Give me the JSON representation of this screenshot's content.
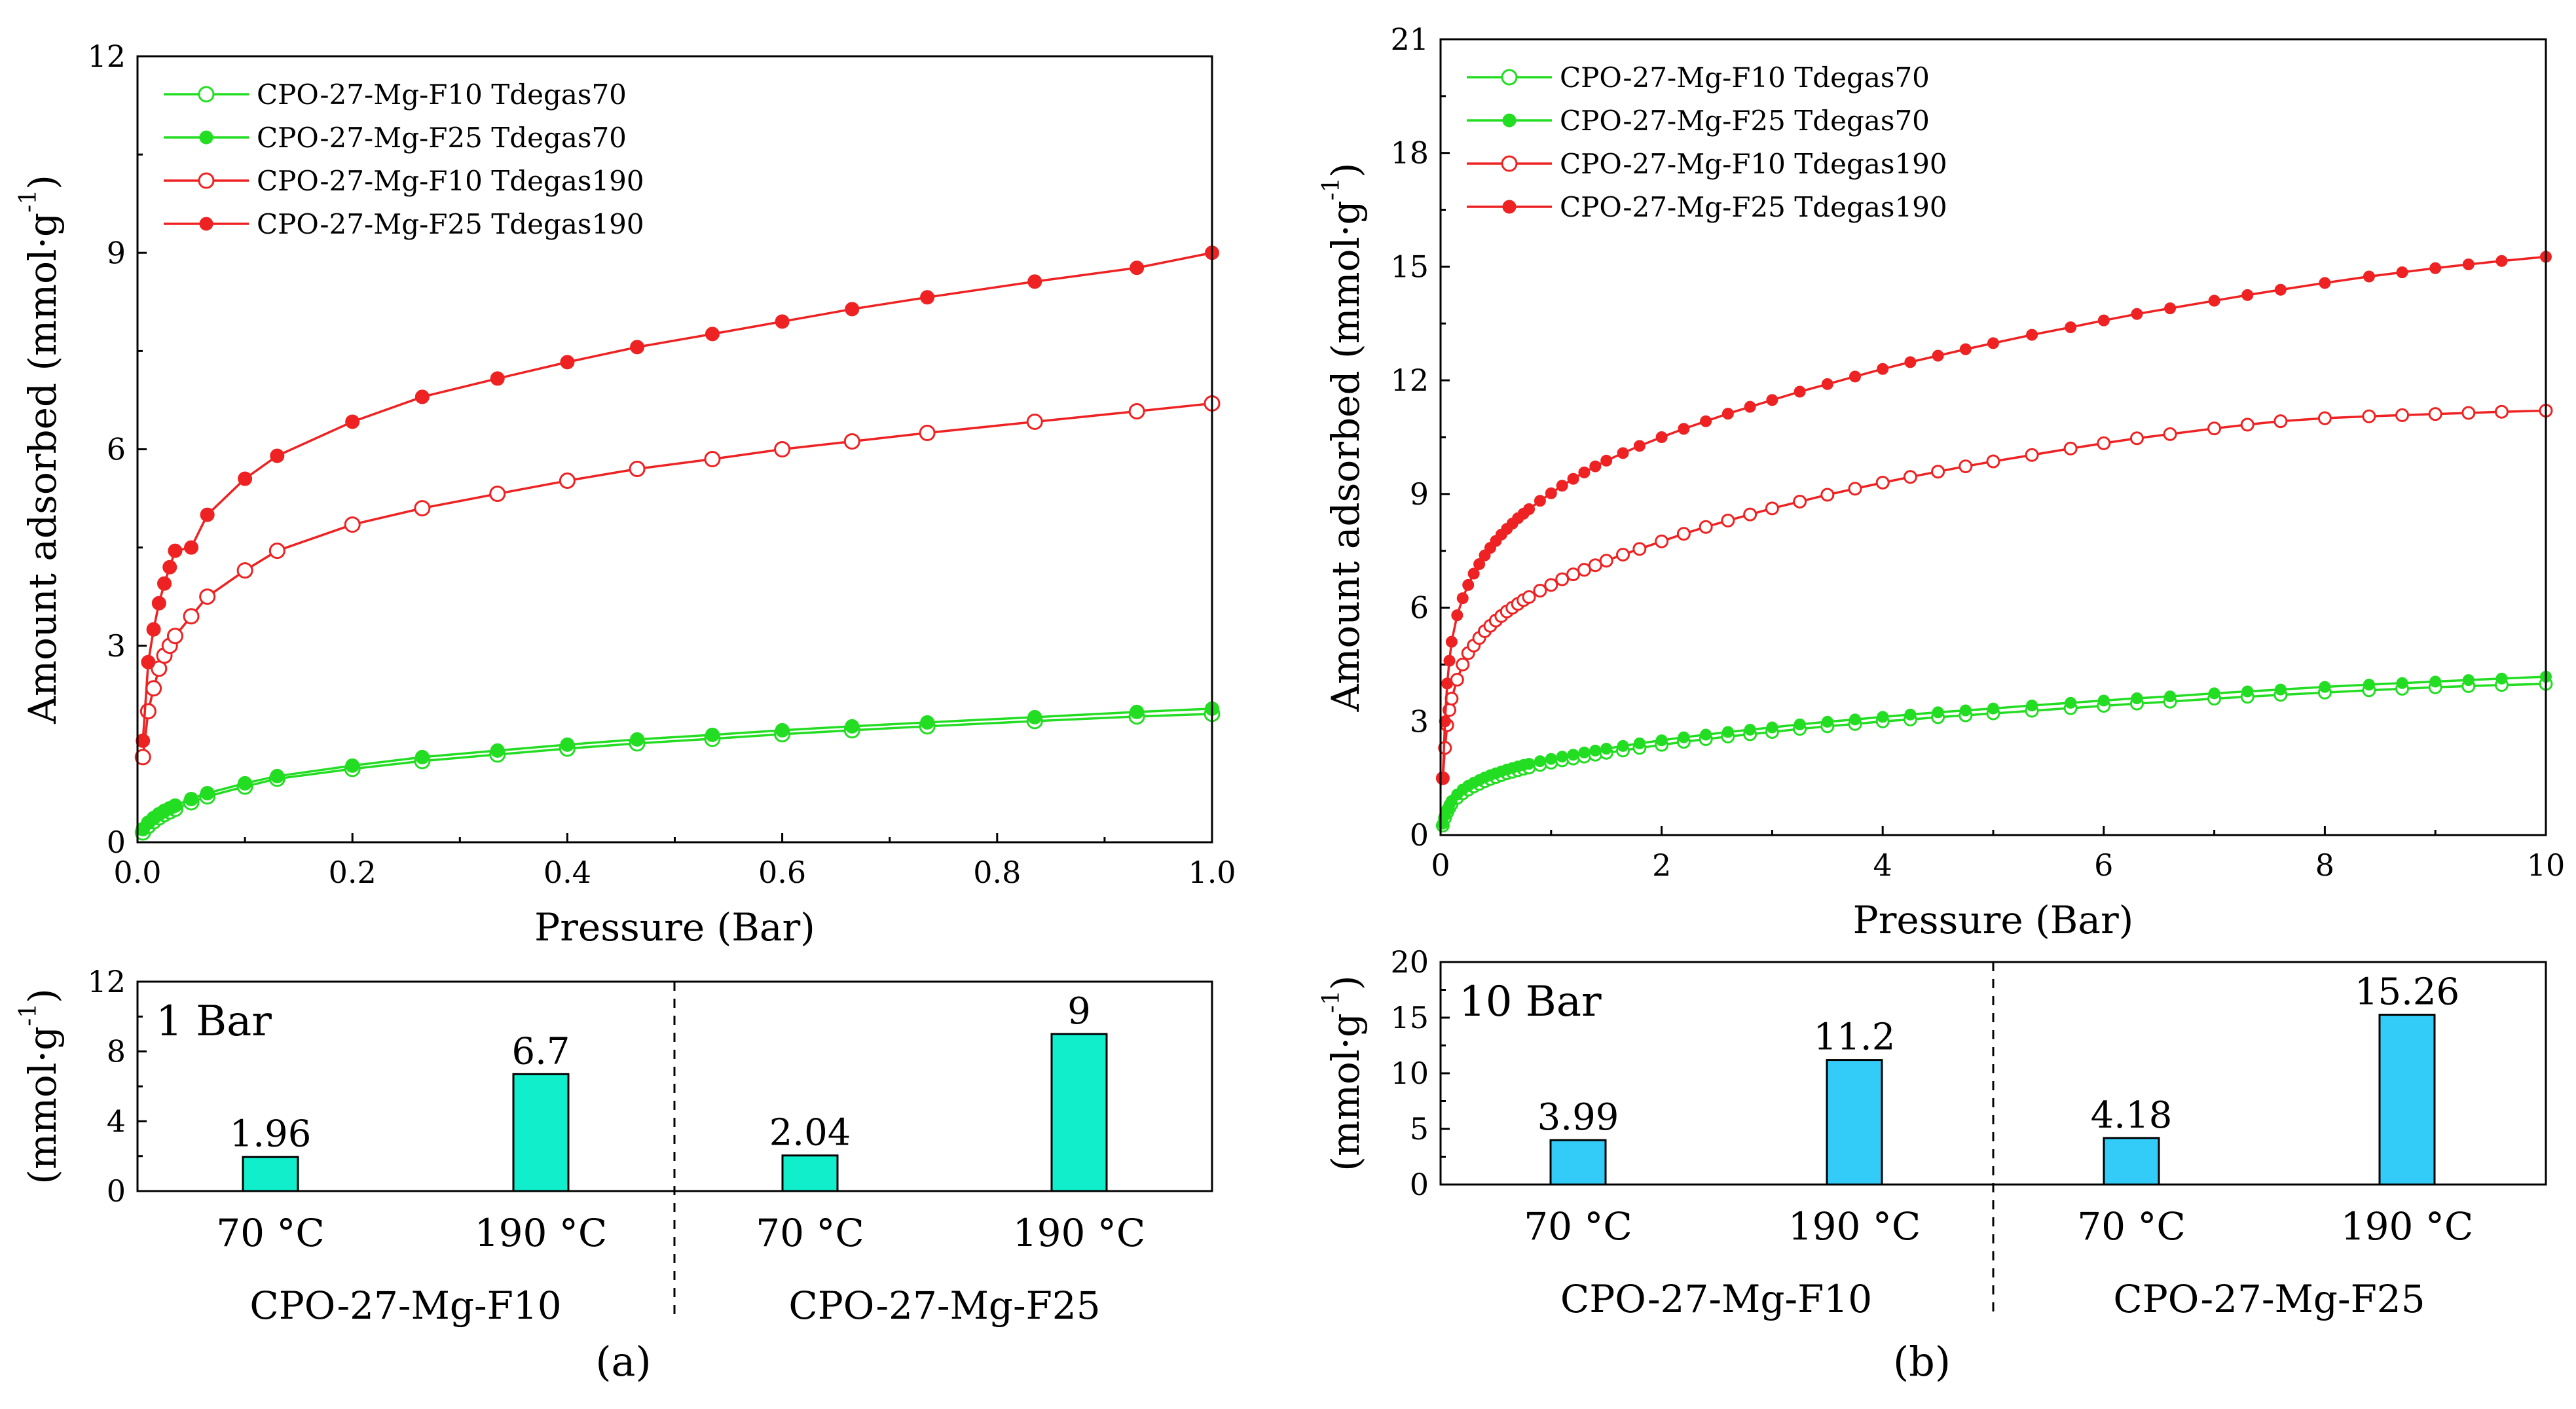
{
  "figure": {
    "panel_letters": [
      "(a)",
      "(b)"
    ]
  },
  "chart_data": [
    {
      "id": "a_main",
      "type": "line",
      "xlabel": "Pressure (Bar)",
      "ylabel": "Amount adsorbed (mmol·g⁻¹)",
      "ylabel_main": "Amount adsorbed (mmol·g",
      "ylabel_sup": "-1",
      "ylabel_close": ")",
      "xlim": [
        0,
        1.0
      ],
      "ylim": [
        0,
        12
      ],
      "xticks": [
        0.0,
        0.2,
        0.4,
        0.6,
        0.8,
        1.0
      ],
      "xtick_labels": [
        "0.0",
        "0.2",
        "0.4",
        "0.6",
        "0.8",
        "1.0"
      ],
      "yticks": [
        0,
        3,
        6,
        9,
        12
      ],
      "ytick_labels": [
        "0",
        "3",
        "6",
        "9",
        "12"
      ],
      "legend_position": "top-left",
      "series": [
        {
          "name": "CPO-27-Mg-F10 Tdegas70",
          "color": "#22dd22",
          "marker": "open",
          "x": [
            0.005,
            0.01,
            0.015,
            0.02,
            0.025,
            0.03,
            0.035,
            0.05,
            0.065,
            0.1,
            0.13,
            0.2,
            0.265,
            0.335,
            0.4,
            0.465,
            0.535,
            0.6,
            0.665,
            0.735,
            0.835,
            0.93,
            1.0
          ],
          "y": [
            0.15,
            0.25,
            0.32,
            0.38,
            0.43,
            0.47,
            0.51,
            0.61,
            0.7,
            0.85,
            0.97,
            1.12,
            1.24,
            1.34,
            1.43,
            1.51,
            1.58,
            1.65,
            1.71,
            1.77,
            1.85,
            1.92,
            1.96
          ]
        },
        {
          "name": "CPO-27-Mg-F25 Tdegas70",
          "color": "#22dd22",
          "marker": "filled",
          "x": [
            0.005,
            0.01,
            0.015,
            0.02,
            0.025,
            0.03,
            0.035,
            0.05,
            0.065,
            0.1,
            0.13,
            0.2,
            0.265,
            0.335,
            0.4,
            0.465,
            0.535,
            0.6,
            0.665,
            0.735,
            0.835,
            0.93,
            1.0
          ],
          "y": [
            0.2,
            0.3,
            0.37,
            0.43,
            0.48,
            0.52,
            0.56,
            0.66,
            0.75,
            0.9,
            1.01,
            1.17,
            1.3,
            1.4,
            1.49,
            1.57,
            1.64,
            1.71,
            1.77,
            1.83,
            1.91,
            1.99,
            2.04
          ]
        },
        {
          "name": "CPO-27-Mg-F10 Tdegas190",
          "color": "#ee2222",
          "marker": "open",
          "x": [
            0.005,
            0.01,
            0.015,
            0.02,
            0.025,
            0.03,
            0.035,
            0.05,
            0.065,
            0.1,
            0.13,
            0.2,
            0.265,
            0.335,
            0.4,
            0.465,
            0.535,
            0.6,
            0.665,
            0.735,
            0.835,
            0.93,
            1.0
          ],
          "y": [
            1.3,
            2.0,
            2.35,
            2.65,
            2.85,
            3.0,
            3.15,
            3.45,
            3.75,
            4.15,
            4.45,
            4.85,
            5.1,
            5.32,
            5.52,
            5.7,
            5.85,
            6.0,
            6.12,
            6.25,
            6.42,
            6.58,
            6.7
          ]
        },
        {
          "name": "CPO-27-Mg-F25 Tdegas190",
          "color": "#ee2222",
          "marker": "filled",
          "x": [
            0.005,
            0.01,
            0.015,
            0.02,
            0.025,
            0.03,
            0.035,
            0.05,
            0.065,
            0.1,
            0.13,
            0.2,
            0.265,
            0.335,
            0.4,
            0.465,
            0.535,
            0.6,
            0.665,
            0.735,
            0.835,
            0.93,
            1.0
          ],
          "y": [
            1.55,
            2.75,
            3.25,
            3.65,
            3.95,
            4.2,
            4.45,
            4.5,
            5.0,
            5.55,
            5.9,
            6.42,
            6.8,
            7.08,
            7.33,
            7.56,
            7.76,
            7.95,
            8.14,
            8.32,
            8.56,
            8.77,
            9.0
          ]
        }
      ]
    },
    {
      "id": "b_main",
      "type": "line",
      "xlabel": "Pressure (Bar)",
      "ylabel": "Amount adsorbed (mmol·g⁻¹)",
      "ylabel_main": "Amount adsorbed (mmol·g",
      "ylabel_sup": "-1",
      "ylabel_close": ")",
      "xlim": [
        0,
        10
      ],
      "ylim": [
        0,
        21
      ],
      "xticks": [
        0,
        2,
        4,
        6,
        8,
        10
      ],
      "xtick_labels": [
        "0",
        "2",
        "4",
        "6",
        "8",
        "10"
      ],
      "yticks": [
        0,
        3,
        6,
        9,
        12,
        15,
        18,
        21
      ],
      "ytick_labels": [
        "0",
        "3",
        "6",
        "9",
        "12",
        "15",
        "18",
        "21"
      ],
      "legend_position": "top-left",
      "series": [
        {
          "name": "CPO-27-Mg-F10 Tdegas70",
          "color": "#22dd22",
          "marker": "open",
          "x": [
            0.02,
            0.04,
            0.06,
            0.08,
            0.1,
            0.15,
            0.2,
            0.25,
            0.3,
            0.35,
            0.4,
            0.45,
            0.5,
            0.55,
            0.6,
            0.65,
            0.7,
            0.75,
            0.8,
            0.9,
            1.0,
            1.1,
            1.2,
            1.3,
            1.4,
            1.5,
            1.65,
            1.8,
            2.0,
            2.2,
            2.4,
            2.6,
            2.8,
            3.0,
            3.25,
            3.5,
            3.75,
            4.0,
            4.25,
            4.5,
            4.75,
            5.0,
            5.35,
            5.7,
            6.0,
            6.3,
            6.6,
            7.0,
            7.3,
            7.6,
            8.0,
            8.4,
            8.7,
            9.0,
            9.3,
            9.6,
            10.0
          ],
          "y": [
            0.25,
            0.45,
            0.6,
            0.72,
            0.82,
            0.98,
            1.1,
            1.2,
            1.28,
            1.35,
            1.42,
            1.48,
            1.53,
            1.58,
            1.63,
            1.67,
            1.71,
            1.75,
            1.78,
            1.85,
            1.91,
            1.97,
            2.02,
            2.07,
            2.12,
            2.17,
            2.23,
            2.3,
            2.38,
            2.46,
            2.53,
            2.6,
            2.66,
            2.72,
            2.8,
            2.87,
            2.93,
            3.0,
            3.05,
            3.11,
            3.16,
            3.21,
            3.28,
            3.35,
            3.41,
            3.47,
            3.52,
            3.6,
            3.65,
            3.7,
            3.76,
            3.82,
            3.86,
            3.9,
            3.93,
            3.96,
            3.99
          ]
        },
        {
          "name": "CPO-27-Mg-F25 Tdegas70",
          "color": "#22dd22",
          "marker": "filled",
          "x": [
            0.02,
            0.04,
            0.06,
            0.08,
            0.1,
            0.15,
            0.2,
            0.25,
            0.3,
            0.35,
            0.4,
            0.45,
            0.5,
            0.55,
            0.6,
            0.65,
            0.7,
            0.75,
            0.8,
            0.9,
            1.0,
            1.1,
            1.2,
            1.3,
            1.4,
            1.5,
            1.65,
            1.8,
            2.0,
            2.2,
            2.4,
            2.6,
            2.8,
            3.0,
            3.25,
            3.5,
            3.75,
            4.0,
            4.25,
            4.5,
            4.75,
            5.0,
            5.35,
            5.7,
            6.0,
            6.3,
            6.6,
            7.0,
            7.3,
            7.6,
            8.0,
            8.4,
            8.7,
            9.0,
            9.3,
            9.6,
            10.0
          ],
          "y": [
            0.3,
            0.52,
            0.68,
            0.8,
            0.9,
            1.07,
            1.2,
            1.3,
            1.38,
            1.45,
            1.52,
            1.58,
            1.63,
            1.68,
            1.73,
            1.77,
            1.81,
            1.85,
            1.88,
            1.95,
            2.01,
            2.07,
            2.12,
            2.18,
            2.23,
            2.28,
            2.35,
            2.42,
            2.5,
            2.58,
            2.65,
            2.72,
            2.78,
            2.84,
            2.92,
            2.99,
            3.05,
            3.12,
            3.18,
            3.24,
            3.29,
            3.34,
            3.42,
            3.49,
            3.55,
            3.61,
            3.66,
            3.74,
            3.79,
            3.84,
            3.91,
            3.97,
            4.01,
            4.05,
            4.09,
            4.13,
            4.18
          ]
        },
        {
          "name": "CPO-27-Mg-F10 Tdegas190",
          "color": "#ee2222",
          "marker": "open",
          "x": [
            0.02,
            0.04,
            0.06,
            0.08,
            0.1,
            0.15,
            0.2,
            0.25,
            0.3,
            0.35,
            0.4,
            0.45,
            0.5,
            0.55,
            0.6,
            0.65,
            0.7,
            0.75,
            0.8,
            0.9,
            1.0,
            1.1,
            1.2,
            1.3,
            1.4,
            1.5,
            1.65,
            1.8,
            2.0,
            2.2,
            2.4,
            2.6,
            2.8,
            3.0,
            3.25,
            3.5,
            3.75,
            4.0,
            4.25,
            4.5,
            4.75,
            5.0,
            5.35,
            5.7,
            6.0,
            6.3,
            6.6,
            7.0,
            7.3,
            7.6,
            8.0,
            8.4,
            8.7,
            9.0,
            9.3,
            9.6,
            10.0
          ],
          "y": [
            1.5,
            2.3,
            2.9,
            3.3,
            3.6,
            4.1,
            4.5,
            4.8,
            5.0,
            5.2,
            5.38,
            5.52,
            5.66,
            5.78,
            5.9,
            6.0,
            6.1,
            6.2,
            6.28,
            6.45,
            6.6,
            6.75,
            6.88,
            7.0,
            7.12,
            7.24,
            7.4,
            7.55,
            7.75,
            7.95,
            8.13,
            8.3,
            8.46,
            8.62,
            8.8,
            8.98,
            9.14,
            9.3,
            9.45,
            9.59,
            9.73,
            9.86,
            10.03,
            10.2,
            10.34,
            10.47,
            10.58,
            10.73,
            10.83,
            10.92,
            11.0,
            11.05,
            11.08,
            11.11,
            11.14,
            11.17,
            11.2
          ]
        },
        {
          "name": "CPO-27-Mg-F25 Tdegas190",
          "color": "#ee2222",
          "marker": "filled",
          "x": [
            0.02,
            0.04,
            0.06,
            0.08,
            0.1,
            0.15,
            0.2,
            0.25,
            0.3,
            0.35,
            0.4,
            0.45,
            0.5,
            0.55,
            0.6,
            0.65,
            0.7,
            0.75,
            0.8,
            0.9,
            1.0,
            1.1,
            1.2,
            1.3,
            1.4,
            1.5,
            1.65,
            1.8,
            2.0,
            2.2,
            2.4,
            2.6,
            2.8,
            3.0,
            3.25,
            3.5,
            3.75,
            4.0,
            4.25,
            4.5,
            4.75,
            5.0,
            5.35,
            5.7,
            6.0,
            6.3,
            6.6,
            7.0,
            7.3,
            7.6,
            8.0,
            8.4,
            8.7,
            9.0,
            9.3,
            9.6,
            10.0
          ],
          "y": [
            1.5,
            3.0,
            4.0,
            4.6,
            5.1,
            5.8,
            6.25,
            6.6,
            6.9,
            7.15,
            7.38,
            7.58,
            7.76,
            7.93,
            8.08,
            8.22,
            8.36,
            8.48,
            8.6,
            8.82,
            9.02,
            9.22,
            9.4,
            9.57,
            9.73,
            9.88,
            10.08,
            10.27,
            10.5,
            10.72,
            10.92,
            11.12,
            11.3,
            11.48,
            11.7,
            11.9,
            12.1,
            12.3,
            12.48,
            12.65,
            12.82,
            12.98,
            13.2,
            13.4,
            13.58,
            13.75,
            13.9,
            14.1,
            14.25,
            14.39,
            14.57,
            14.74,
            14.85,
            14.96,
            15.06,
            15.15,
            15.26
          ]
        }
      ]
    },
    {
      "id": "a_bar",
      "type": "bar",
      "note": "1 Bar",
      "ylabel_main": "(mmol·g",
      "ylabel_sup": "-1",
      "ylabel_close": ")",
      "ylim": [
        0,
        12
      ],
      "yticks": [
        0,
        4,
        8,
        12
      ],
      "ytick_labels": [
        "0",
        "4",
        "8",
        "12"
      ],
      "bar_color": "#11eecc",
      "categories": [
        "70 °C",
        "190 °C",
        "70 °C",
        "190 °C"
      ],
      "values": [
        1.96,
        6.7,
        2.04,
        9
      ],
      "value_labels": [
        "1.96",
        "6.7",
        "2.04",
        "9"
      ],
      "groups": [
        "CPO-27-Mg-F10",
        "CPO-27-Mg-F25"
      ]
    },
    {
      "id": "b_bar",
      "type": "bar",
      "note": "10 Bar",
      "ylabel_main": "(mmol·g",
      "ylabel_sup": "-1",
      "ylabel_close": ")",
      "ylim": [
        0,
        20
      ],
      "yticks": [
        0,
        5,
        10,
        15,
        20
      ],
      "ytick_labels": [
        "0",
        "5",
        "10",
        "15",
        "20"
      ],
      "bar_color": "#33ccf8",
      "categories": [
        "70 °C",
        "190 °C",
        "70 °C",
        "190 °C"
      ],
      "values": [
        3.99,
        11.2,
        4.18,
        15.26
      ],
      "value_labels": [
        "3.99",
        "11.2",
        "4.18",
        "15.26"
      ],
      "groups": [
        "CPO-27-Mg-F10",
        "CPO-27-Mg-F25"
      ]
    }
  ]
}
